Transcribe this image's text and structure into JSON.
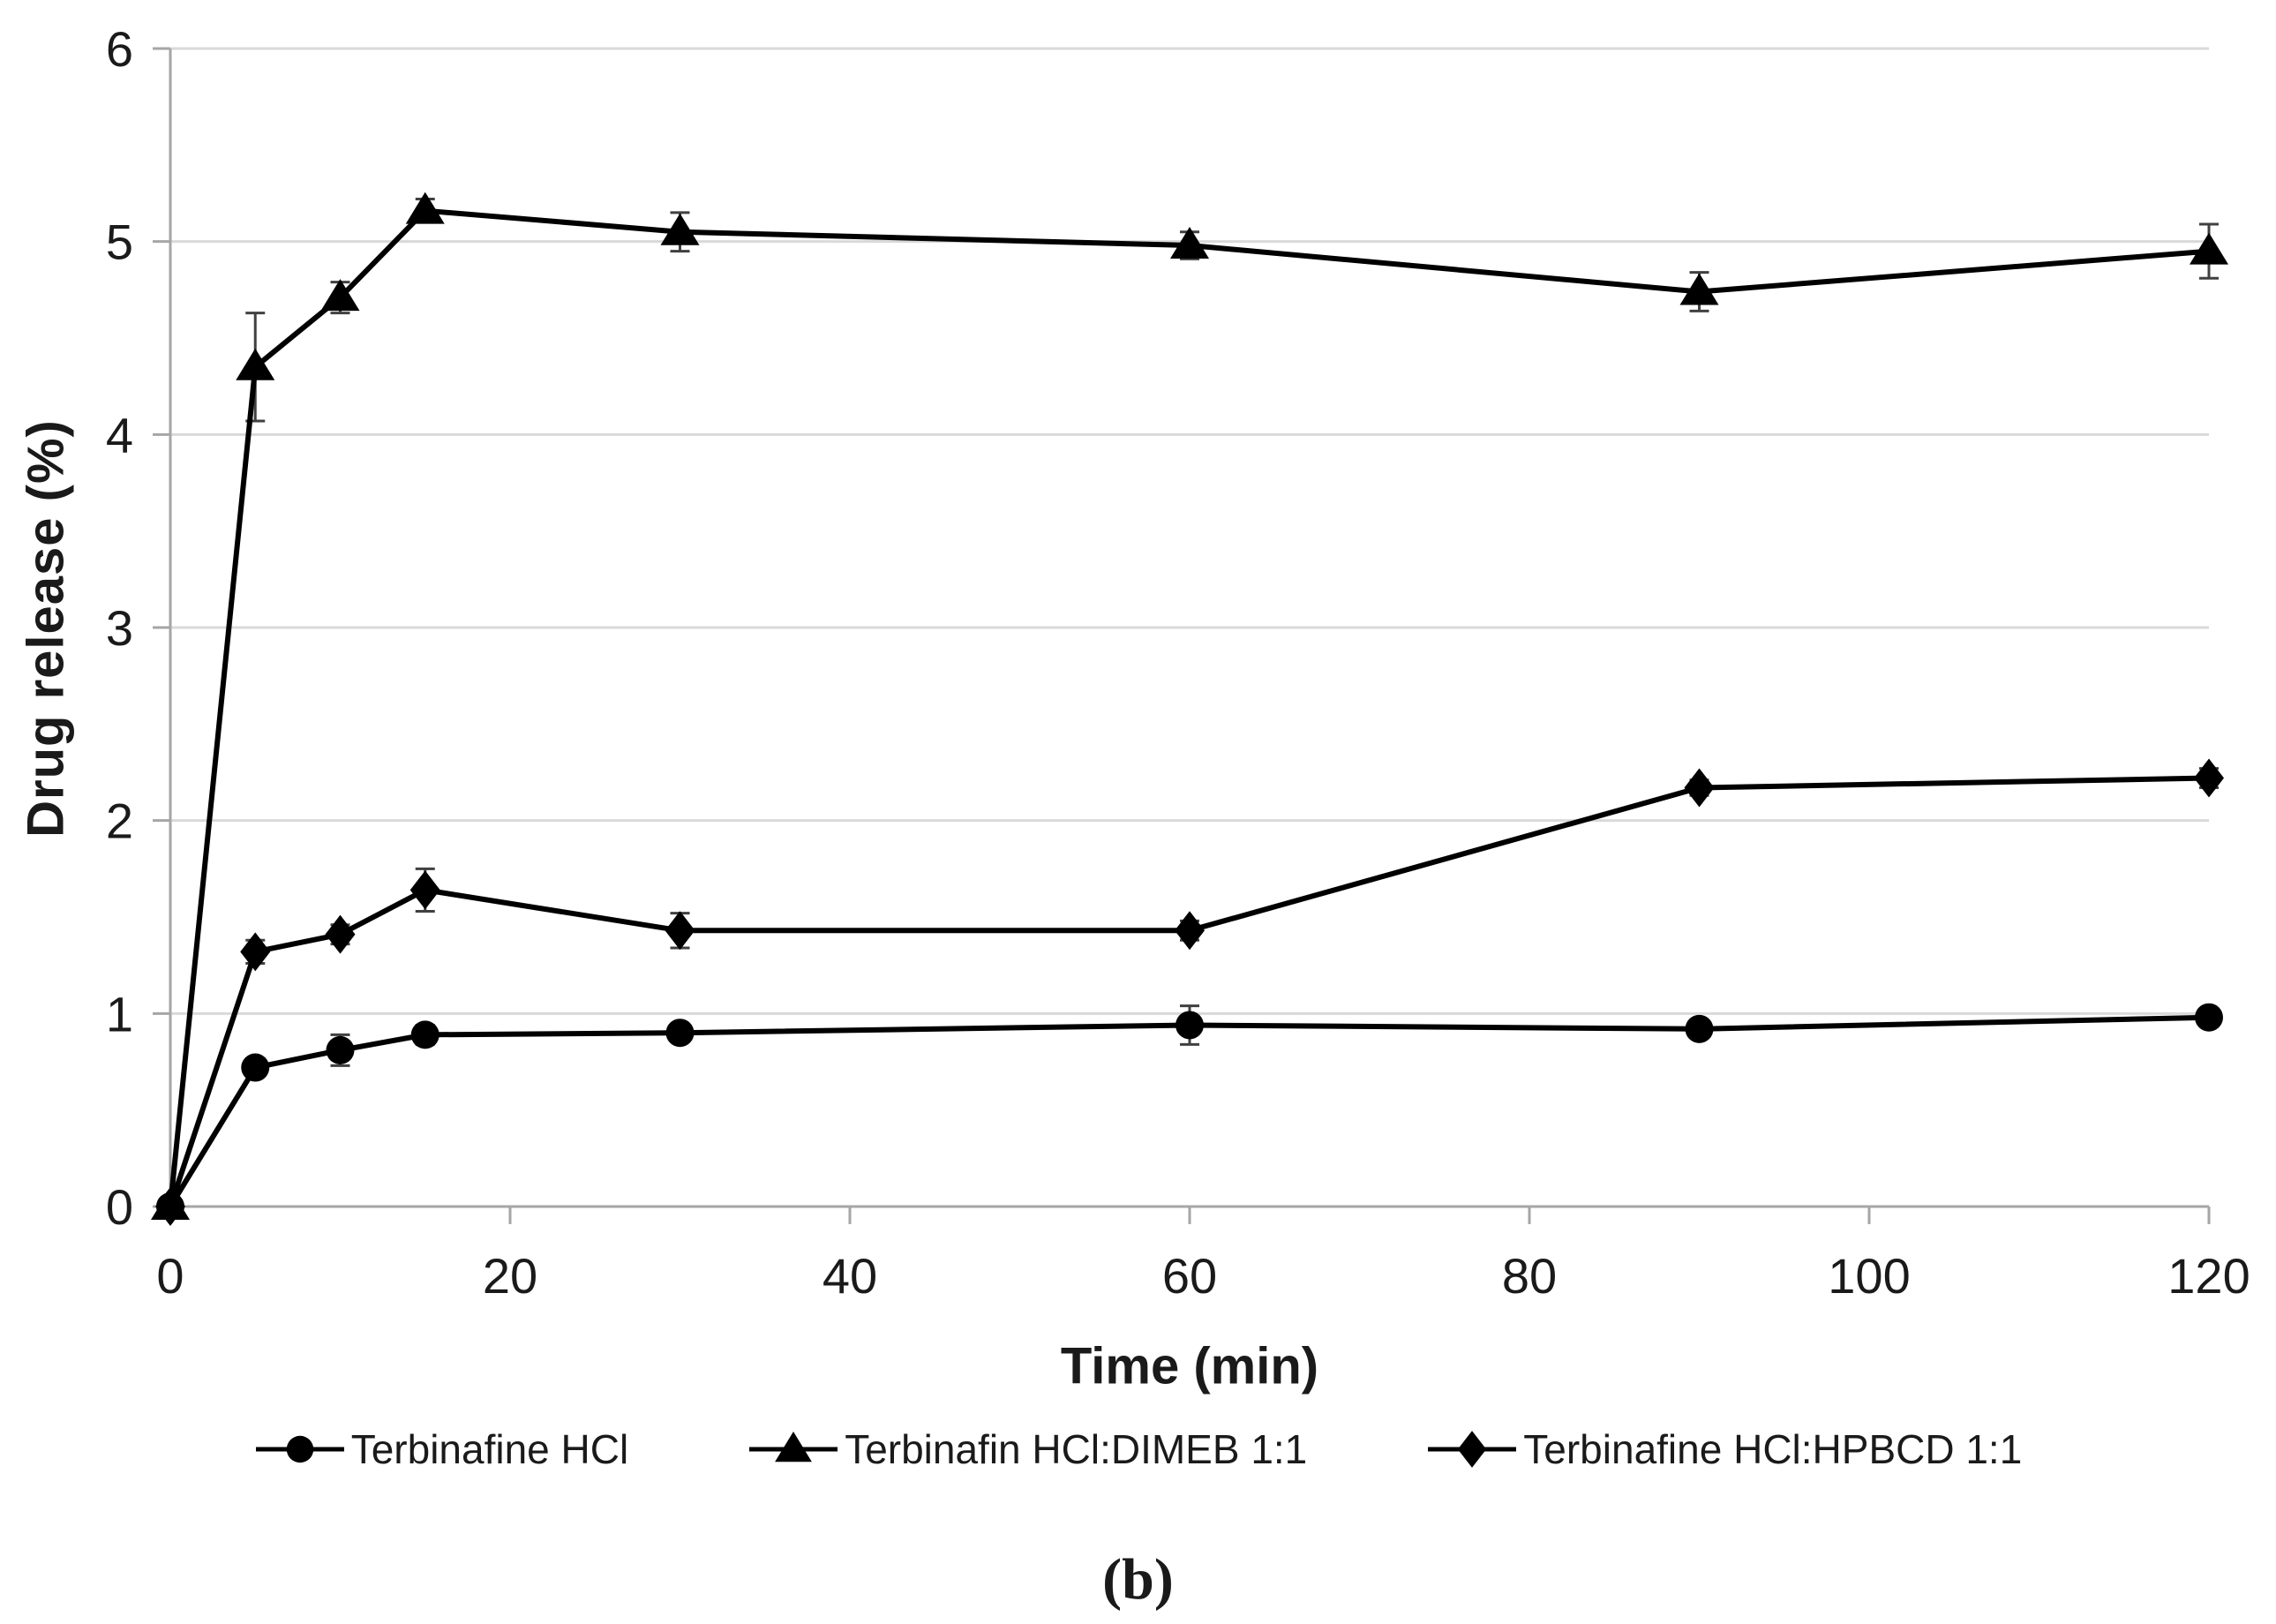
{
  "figure": {
    "caption": "(b)"
  },
  "chart_data": {
    "type": "line",
    "title": "",
    "xlabel": "Time (min)",
    "ylabel": "Drug release (%)",
    "xlim": [
      0,
      120
    ],
    "ylim": [
      0,
      6
    ],
    "x_ticks": [
      0,
      20,
      40,
      60,
      80,
      100,
      120
    ],
    "y_ticks": [
      0,
      1,
      2,
      3,
      4,
      5,
      6
    ],
    "grid": "horizontal",
    "legend_position": "bottom",
    "line_color": "#000000",
    "grid_color": "#d9d9d9",
    "axis_color": "#a6a6a6",
    "error_bar_color": "#404040",
    "x": [
      0,
      5,
      10,
      15,
      30,
      60,
      90,
      120
    ],
    "series": [
      {
        "name": "Terbinafine HCl",
        "marker": "circle",
        "values": [
          0,
          0.72,
          0.81,
          0.89,
          0.9,
          0.94,
          0.92,
          0.98
        ],
        "errors": [
          0,
          0.04,
          0.08,
          0.05,
          0.04,
          0.1,
          0.04,
          0.04
        ]
      },
      {
        "name": "Terbinafin HCl:DIMEB 1:1",
        "marker": "triangle",
        "values": [
          0,
          4.35,
          4.71,
          5.16,
          5.05,
          4.98,
          4.74,
          4.95
        ],
        "errors": [
          0,
          0.28,
          0.08,
          0.06,
          0.1,
          0.07,
          0.1,
          0.14
        ]
      },
      {
        "name": "Terbinafine HCl:HPBCD 1:1",
        "marker": "diamond",
        "values": [
          0,
          1.32,
          1.41,
          1.64,
          1.43,
          1.43,
          2.17,
          2.22
        ],
        "errors": [
          0,
          0.06,
          0.05,
          0.11,
          0.09,
          0.05,
          0.04,
          0.05
        ]
      }
    ]
  }
}
